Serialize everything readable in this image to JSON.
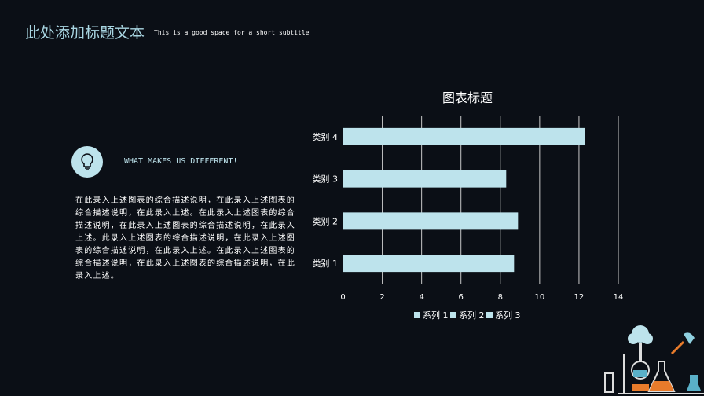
{
  "header": {
    "title": "此处添加标题文本",
    "subtitle": "This is a good space for a short subtitle"
  },
  "feature": {
    "icon": "lightbulb-icon",
    "heading": "WHAT MAKES US DIFFERENT!",
    "description": "在此录入上述图表的综合描述说明，在此录入上述图表的综合描述说明，在此录入上述。在此录入上述图表的综合描述说明，在此录入上述图表的综合描述说明，在此录入上述。此录入上述图表的综合描述说明，在此录入上述图表的综合描述说明，在此录入上述。在此录入上述图表的综合描述说明，在此录入上述图表的综合描述说明，在此录入上述。"
  },
  "decoration": {
    "icon": "laboratory-flasks-illustration"
  },
  "chart_data": {
    "type": "bar",
    "orientation": "horizontal",
    "title": "图表标题",
    "categories": [
      "类别 1",
      "类别 2",
      "类别 3",
      "类别 4"
    ],
    "values": [
      8.7,
      8.9,
      8.3,
      12.3
    ],
    "xlim": [
      0,
      14
    ],
    "xticks": [
      0,
      2,
      4,
      6,
      8,
      10,
      12,
      14
    ],
    "legend": [
      "系列 1",
      "系列 2",
      "系列 3"
    ],
    "legend_position": "bottom",
    "grid": "vertical",
    "bar_color": "#bde3ec"
  }
}
